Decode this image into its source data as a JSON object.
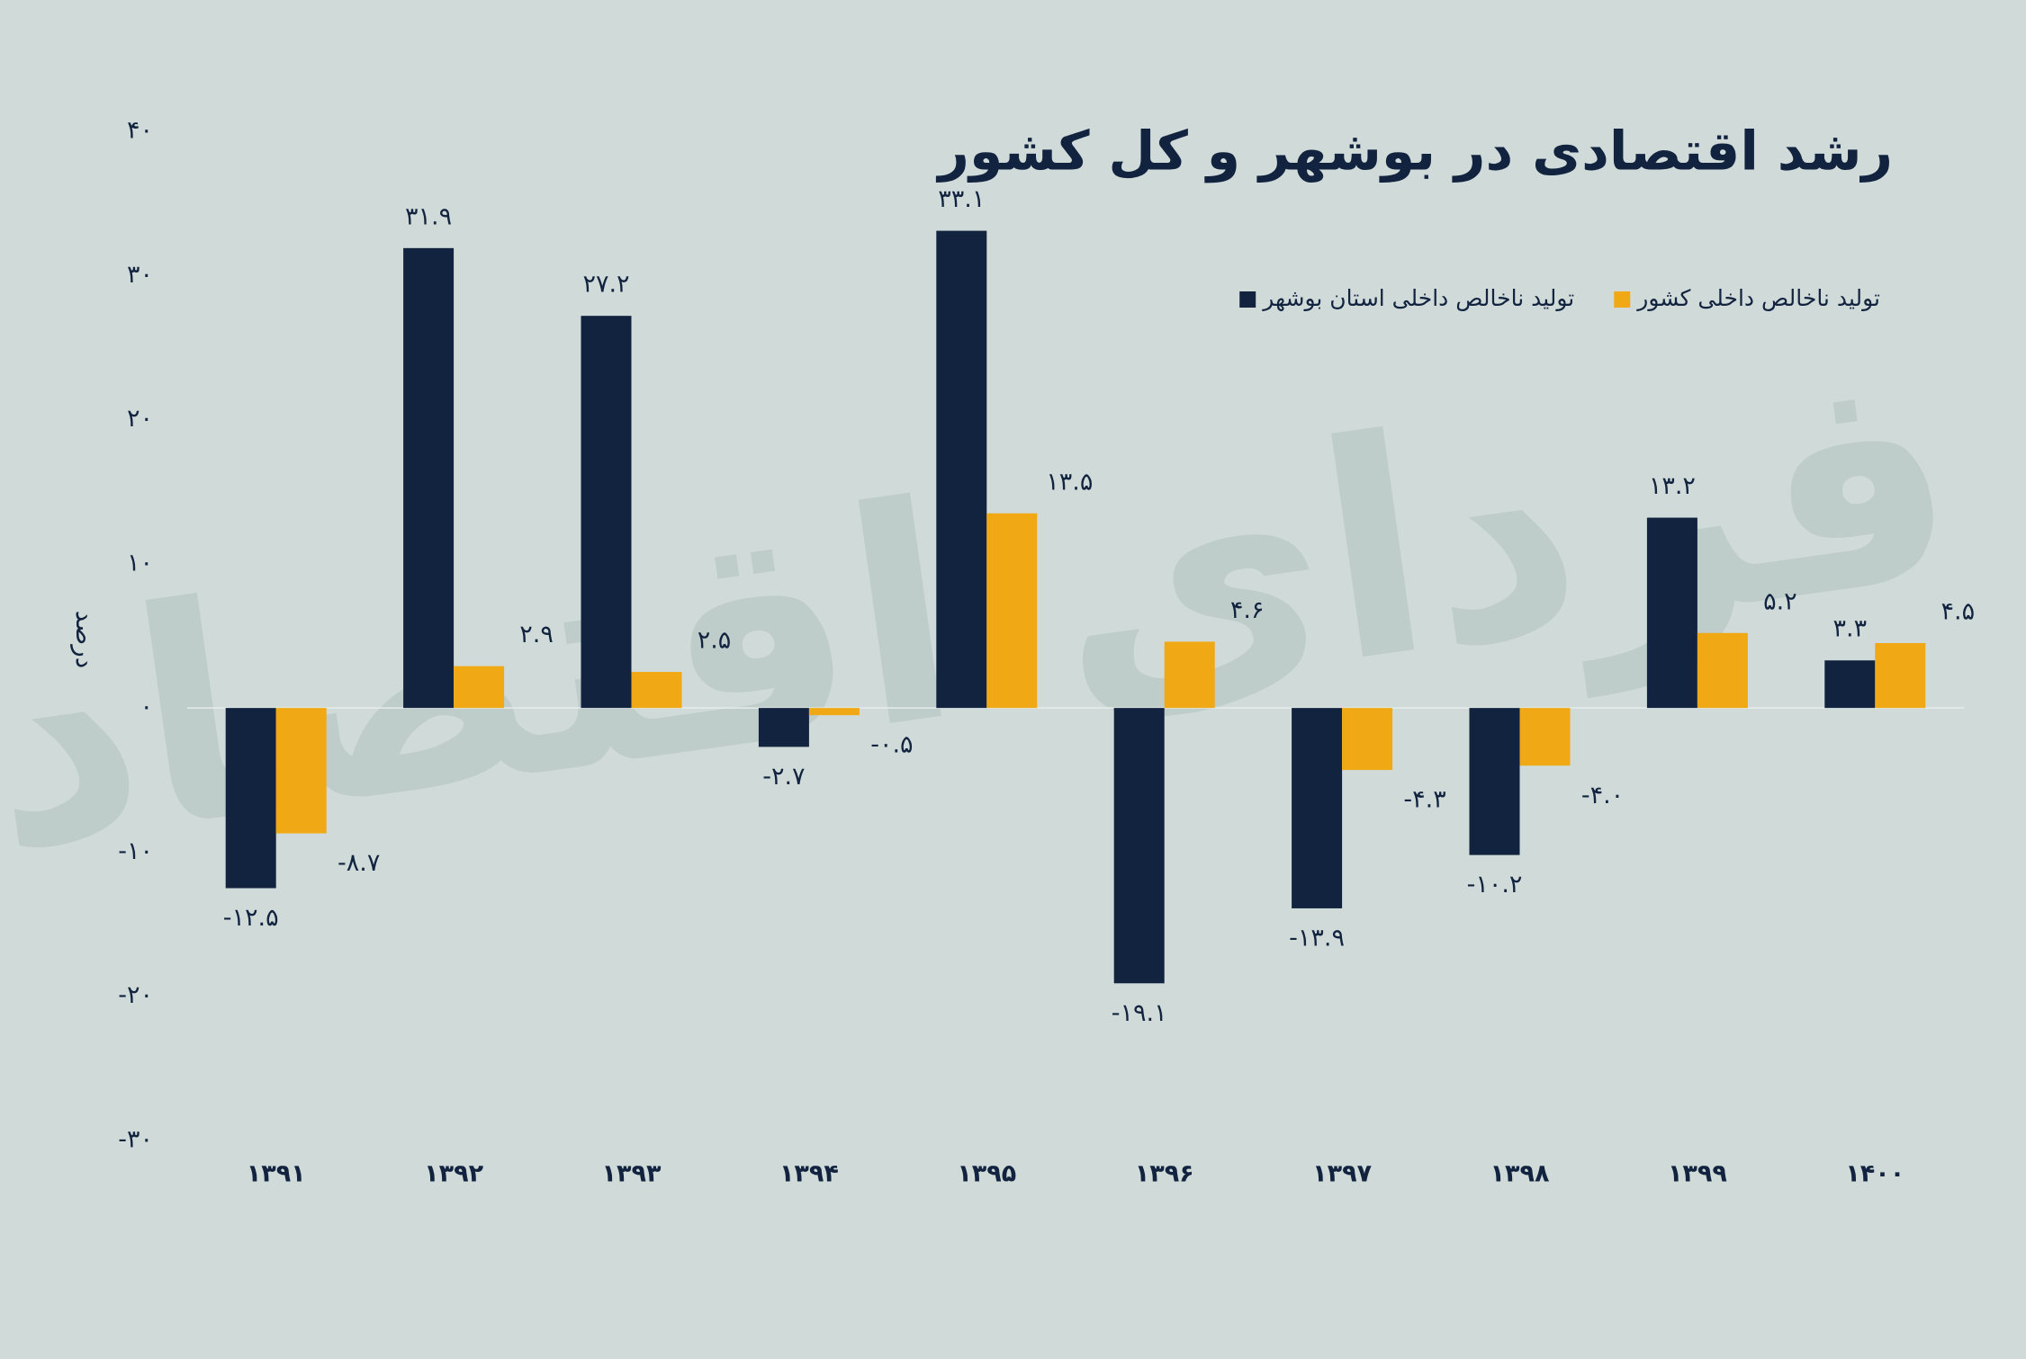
{
  "chart_data": {
    "type": "bar",
    "title": "رشد اقتصادی در بوشهر و کل کشور",
    "watermark": "فردای اقتصاد",
    "y_label": "درصد",
    "categories": [
      "۱۳۹۱",
      "۱۳۹۲",
      "۱۳۹۳",
      "۱۳۹۴",
      "۱۳۹۵",
      "۱۳۹۶",
      "۱۳۹۷",
      "۱۳۹۸",
      "۱۳۹۹",
      "۱۴۰۰"
    ],
    "series": [
      {
        "name": "تولید ناخالص داخلی استان بوشهر",
        "color": "#12233f",
        "values": [
          -12.5,
          31.9,
          27.2,
          -2.7,
          33.1,
          -19.1,
          -13.9,
          -10.2,
          13.2,
          3.3
        ],
        "value_labels": [
          "-۱۲.۵",
          "۳۱.۹",
          "۲۷.۲",
          "-۲.۷",
          "۳۳.۱",
          "-۱۹.۱",
          "-۱۳.۹",
          "-۱۰.۲",
          "۱۳.۲",
          "۳.۳"
        ]
      },
      {
        "name": "تولید ناخالص داخلی کشور",
        "color": "#f0a814",
        "values": [
          -8.7,
          2.9,
          2.5,
          -0.5,
          13.5,
          4.6,
          -4.3,
          -4.0,
          5.2,
          4.5
        ],
        "value_labels": [
          "-۸.۷",
          "۲.۹",
          "۲.۵",
          "-۰.۵",
          "۱۳.۵",
          "۴.۶",
          "-۴.۳",
          "-۴.۰",
          "۵.۲",
          "۴.۵"
        ]
      }
    ],
    "ylim": [
      -30,
      40
    ],
    "yticks": [
      {
        "value": -30,
        "label": "-۳۰"
      },
      {
        "value": -20,
        "label": "-۲۰"
      },
      {
        "value": -10,
        "label": "-۱۰"
      },
      {
        "value": 0,
        "label": "۰"
      },
      {
        "value": 10,
        "label": "۱۰"
      },
      {
        "value": 20,
        "label": "۲۰"
      },
      {
        "value": 30,
        "label": "۳۰"
      },
      {
        "value": 40,
        "label": "۴۰"
      }
    ],
    "grid": false
  }
}
